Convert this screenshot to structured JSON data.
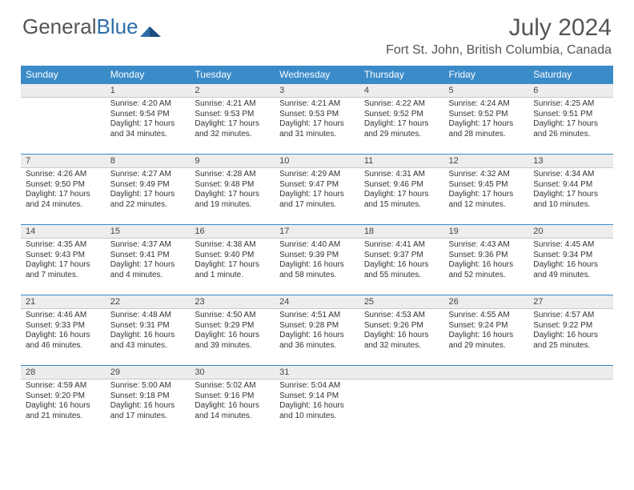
{
  "brand": {
    "part1": "General",
    "part2": "Blue"
  },
  "title": "July 2024",
  "location": "Fort St. John, British Columbia, Canada",
  "colors": {
    "header_bg": "#3b8bc9",
    "header_text": "#ffffff",
    "daynum_bg": "#ededed",
    "border_accent": "#3b8bc9",
    "text": "#333333",
    "title_text": "#555555"
  },
  "day_headers": [
    "Sunday",
    "Monday",
    "Tuesday",
    "Wednesday",
    "Thursday",
    "Friday",
    "Saturday"
  ],
  "weeks": [
    [
      {
        "n": "",
        "lines": []
      },
      {
        "n": "1",
        "lines": [
          "Sunrise: 4:20 AM",
          "Sunset: 9:54 PM",
          "Daylight: 17 hours",
          "and 34 minutes."
        ]
      },
      {
        "n": "2",
        "lines": [
          "Sunrise: 4:21 AM",
          "Sunset: 9:53 PM",
          "Daylight: 17 hours",
          "and 32 minutes."
        ]
      },
      {
        "n": "3",
        "lines": [
          "Sunrise: 4:21 AM",
          "Sunset: 9:53 PM",
          "Daylight: 17 hours",
          "and 31 minutes."
        ]
      },
      {
        "n": "4",
        "lines": [
          "Sunrise: 4:22 AM",
          "Sunset: 9:52 PM",
          "Daylight: 17 hours",
          "and 29 minutes."
        ]
      },
      {
        "n": "5",
        "lines": [
          "Sunrise: 4:24 AM",
          "Sunset: 9:52 PM",
          "Daylight: 17 hours",
          "and 28 minutes."
        ]
      },
      {
        "n": "6",
        "lines": [
          "Sunrise: 4:25 AM",
          "Sunset: 9:51 PM",
          "Daylight: 17 hours",
          "and 26 minutes."
        ]
      }
    ],
    [
      {
        "n": "7",
        "lines": [
          "Sunrise: 4:26 AM",
          "Sunset: 9:50 PM",
          "Daylight: 17 hours",
          "and 24 minutes."
        ]
      },
      {
        "n": "8",
        "lines": [
          "Sunrise: 4:27 AM",
          "Sunset: 9:49 PM",
          "Daylight: 17 hours",
          "and 22 minutes."
        ]
      },
      {
        "n": "9",
        "lines": [
          "Sunrise: 4:28 AM",
          "Sunset: 9:48 PM",
          "Daylight: 17 hours",
          "and 19 minutes."
        ]
      },
      {
        "n": "10",
        "lines": [
          "Sunrise: 4:29 AM",
          "Sunset: 9:47 PM",
          "Daylight: 17 hours",
          "and 17 minutes."
        ]
      },
      {
        "n": "11",
        "lines": [
          "Sunrise: 4:31 AM",
          "Sunset: 9:46 PM",
          "Daylight: 17 hours",
          "and 15 minutes."
        ]
      },
      {
        "n": "12",
        "lines": [
          "Sunrise: 4:32 AM",
          "Sunset: 9:45 PM",
          "Daylight: 17 hours",
          "and 12 minutes."
        ]
      },
      {
        "n": "13",
        "lines": [
          "Sunrise: 4:34 AM",
          "Sunset: 9:44 PM",
          "Daylight: 17 hours",
          "and 10 minutes."
        ]
      }
    ],
    [
      {
        "n": "14",
        "lines": [
          "Sunrise: 4:35 AM",
          "Sunset: 9:43 PM",
          "Daylight: 17 hours",
          "and 7 minutes."
        ]
      },
      {
        "n": "15",
        "lines": [
          "Sunrise: 4:37 AM",
          "Sunset: 9:41 PM",
          "Daylight: 17 hours",
          "and 4 minutes."
        ]
      },
      {
        "n": "16",
        "lines": [
          "Sunrise: 4:38 AM",
          "Sunset: 9:40 PM",
          "Daylight: 17 hours",
          "and 1 minute."
        ]
      },
      {
        "n": "17",
        "lines": [
          "Sunrise: 4:40 AM",
          "Sunset: 9:39 PM",
          "Daylight: 16 hours",
          "and 58 minutes."
        ]
      },
      {
        "n": "18",
        "lines": [
          "Sunrise: 4:41 AM",
          "Sunset: 9:37 PM",
          "Daylight: 16 hours",
          "and 55 minutes."
        ]
      },
      {
        "n": "19",
        "lines": [
          "Sunrise: 4:43 AM",
          "Sunset: 9:36 PM",
          "Daylight: 16 hours",
          "and 52 minutes."
        ]
      },
      {
        "n": "20",
        "lines": [
          "Sunrise: 4:45 AM",
          "Sunset: 9:34 PM",
          "Daylight: 16 hours",
          "and 49 minutes."
        ]
      }
    ],
    [
      {
        "n": "21",
        "lines": [
          "Sunrise: 4:46 AM",
          "Sunset: 9:33 PM",
          "Daylight: 16 hours",
          "and 46 minutes."
        ]
      },
      {
        "n": "22",
        "lines": [
          "Sunrise: 4:48 AM",
          "Sunset: 9:31 PM",
          "Daylight: 16 hours",
          "and 43 minutes."
        ]
      },
      {
        "n": "23",
        "lines": [
          "Sunrise: 4:50 AM",
          "Sunset: 9:29 PM",
          "Daylight: 16 hours",
          "and 39 minutes."
        ]
      },
      {
        "n": "24",
        "lines": [
          "Sunrise: 4:51 AM",
          "Sunset: 9:28 PM",
          "Daylight: 16 hours",
          "and 36 minutes."
        ]
      },
      {
        "n": "25",
        "lines": [
          "Sunrise: 4:53 AM",
          "Sunset: 9:26 PM",
          "Daylight: 16 hours",
          "and 32 minutes."
        ]
      },
      {
        "n": "26",
        "lines": [
          "Sunrise: 4:55 AM",
          "Sunset: 9:24 PM",
          "Daylight: 16 hours",
          "and 29 minutes."
        ]
      },
      {
        "n": "27",
        "lines": [
          "Sunrise: 4:57 AM",
          "Sunset: 9:22 PM",
          "Daylight: 16 hours",
          "and 25 minutes."
        ]
      }
    ],
    [
      {
        "n": "28",
        "lines": [
          "Sunrise: 4:59 AM",
          "Sunset: 9:20 PM",
          "Daylight: 16 hours",
          "and 21 minutes."
        ]
      },
      {
        "n": "29",
        "lines": [
          "Sunrise: 5:00 AM",
          "Sunset: 9:18 PM",
          "Daylight: 16 hours",
          "and 17 minutes."
        ]
      },
      {
        "n": "30",
        "lines": [
          "Sunrise: 5:02 AM",
          "Sunset: 9:16 PM",
          "Daylight: 16 hours",
          "and 14 minutes."
        ]
      },
      {
        "n": "31",
        "lines": [
          "Sunrise: 5:04 AM",
          "Sunset: 9:14 PM",
          "Daylight: 16 hours",
          "and 10 minutes."
        ]
      },
      {
        "n": "",
        "lines": []
      },
      {
        "n": "",
        "lines": []
      },
      {
        "n": "",
        "lines": []
      }
    ]
  ]
}
